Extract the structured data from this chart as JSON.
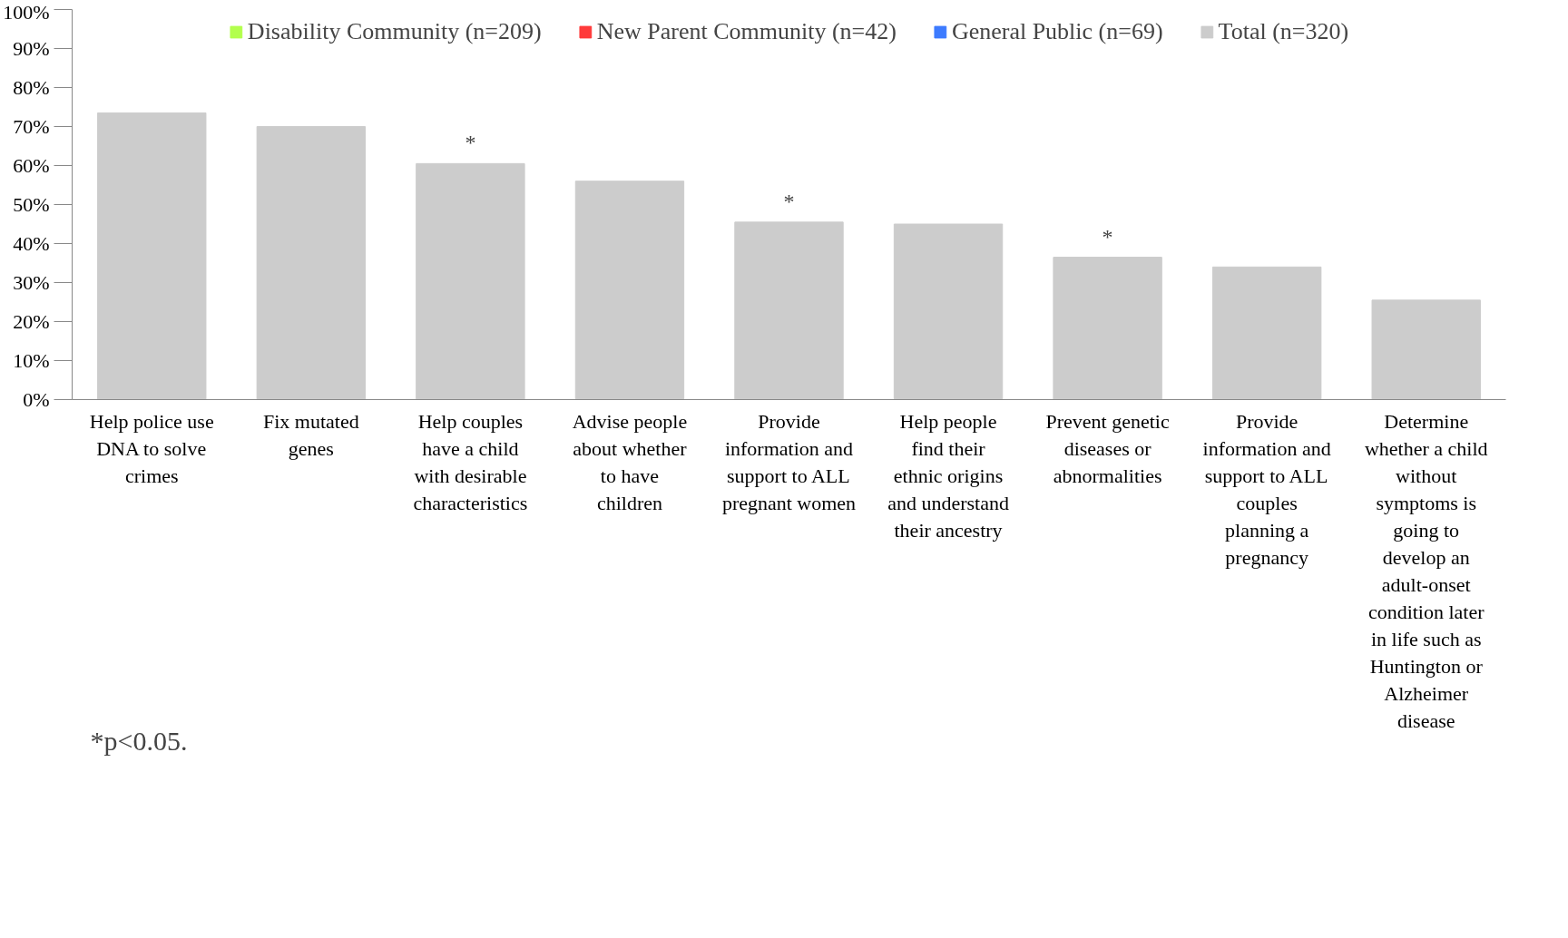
{
  "chart_data": {
    "type": "bar",
    "categories": [
      "Help police use DNA to solve crimes",
      "Fix mutated genes",
      "Help couples have a child with desirable characteristics",
      "Advise people about whether to have children",
      "Provide information and support to ALL pregnant women",
      "Help people find their ethnic origins and understand their ancestry",
      "Prevent genetic diseases or abnormalities",
      "Provide information and support to ALL couples planning a pregnancy",
      "Determine whether a child without symptoms is going to develop an adult-onset condition later in life such as Huntington or Alzheimer disease"
    ],
    "series": [
      {
        "name": "Disability Community (n=209)",
        "color": "#b3ff4d",
        "values": [
          null,
          null,
          null,
          null,
          null,
          null,
          null,
          null,
          null
        ]
      },
      {
        "name": "New Parent Community (n=42)",
        "color": "#ff3b3b",
        "values": [
          null,
          null,
          null,
          null,
          null,
          null,
          null,
          null,
          null
        ]
      },
      {
        "name": "General Public (n=69)",
        "color": "#3d7bff",
        "values": [
          null,
          null,
          null,
          null,
          null,
          null,
          null,
          null,
          null
        ]
      },
      {
        "name": "Total (n=320)",
        "color": "#cccccc",
        "values": [
          73.5,
          70,
          60.5,
          56,
          45.5,
          45,
          36.5,
          34,
          25.5
        ],
        "value_labels": [
          null,
          null,
          "*",
          null,
          "*",
          null,
          "*",
          null,
          null
        ]
      }
    ],
    "ylim": [
      0,
      100
    ],
    "yticks": [
      {
        "value": 0,
        "label": "0%"
      },
      {
        "value": 10,
        "label": "10%"
      },
      {
        "value": 20,
        "label": "20%"
      },
      {
        "value": 30,
        "label": "30%"
      },
      {
        "value": 40,
        "label": "40%"
      },
      {
        "value": 50,
        "label": "50%"
      },
      {
        "value": 60,
        "label": "60%"
      },
      {
        "value": 70,
        "label": "70%"
      },
      {
        "value": 80,
        "label": "80%"
      },
      {
        "value": 90,
        "label": "90%"
      },
      {
        "value": 100,
        "label": "100%"
      }
    ],
    "legend": "top",
    "annotations": [
      "*p<0.05."
    ]
  }
}
